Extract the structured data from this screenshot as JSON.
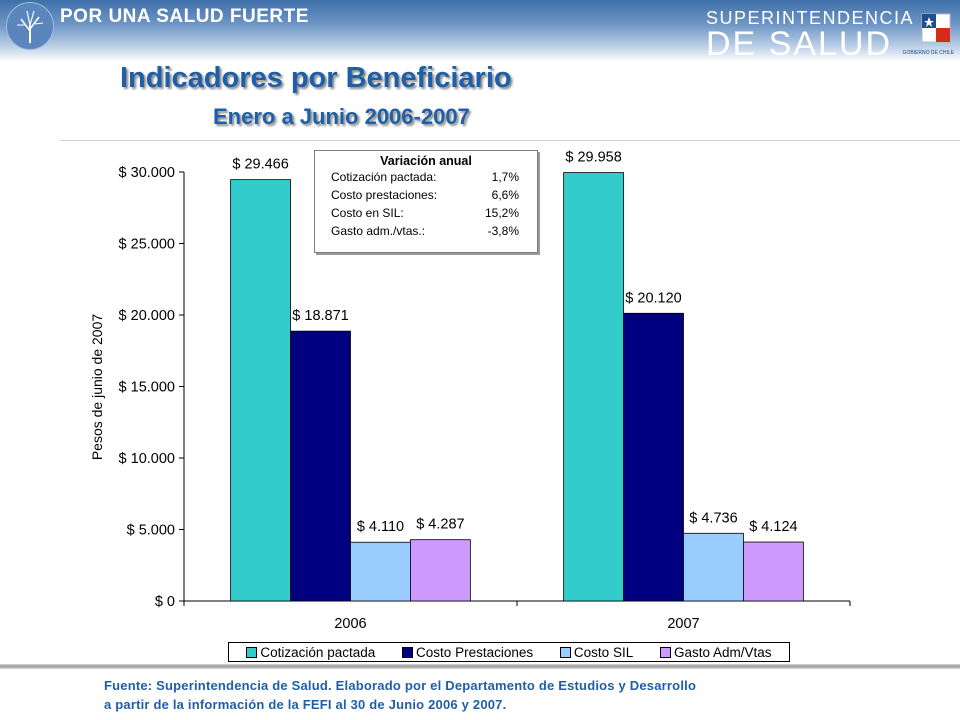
{
  "header": {
    "slogan": "POR UNA SALUD FUERTE",
    "brand_top": "SUPERINTENDENCIA",
    "brand_bottom": "DE SALUD",
    "gov_text": "GOBIERNO DE CHILE",
    "colors": {
      "band": "#3f6fa8",
      "title": "#1f5fa8"
    }
  },
  "title": "Indicadores por Beneficiario",
  "subtitle": "Enero a Junio 2006-2007",
  "chart_data": {
    "type": "bar",
    "ylabel": "Pesos de junio de 2007",
    "ylim": [
      0,
      30000
    ],
    "yticks": [
      0,
      5000,
      10000,
      15000,
      20000,
      25000,
      30000
    ],
    "ytick_labels": [
      "$ 0",
      "$ 5.000",
      "$ 10.000",
      "$ 15.000",
      "$ 20.000",
      "$ 25.000",
      "$ 30.000"
    ],
    "categories": [
      "2006",
      "2007"
    ],
    "legend_position": "bottom",
    "series": [
      {
        "name": "Cotización pactada",
        "color": "#33cccc",
        "values": [
          29466,
          29958
        ],
        "labels": [
          "$ 29.466",
          "$ 29.958"
        ]
      },
      {
        "name": "Costo Prestaciones",
        "color": "#000080",
        "values": [
          18871,
          20120
        ],
        "labels": [
          "$ 18.871",
          "$ 20.120"
        ]
      },
      {
        "name": "Costo SIL",
        "color": "#99ccff",
        "values": [
          4110,
          4736
        ],
        "labels": [
          "$ 4.110",
          "$ 4.736"
        ]
      },
      {
        "name": "Gasto Adm/Vtas",
        "color": "#cc99ff",
        "values": [
          4287,
          4124
        ],
        "labels": [
          "$ 4.287",
          "$ 4.124"
        ]
      }
    ],
    "annotation": {
      "title": "Variación anual",
      "rows": [
        {
          "label": "Cotización pactada:",
          "value": "1,7%"
        },
        {
          "label": "Costo prestaciones:",
          "value": "6,6%"
        },
        {
          "label": "Costo en SIL:",
          "value": "15,2%"
        },
        {
          "label": "Gasto adm./vtas.:",
          "value": "-3,8%"
        }
      ]
    }
  },
  "source": {
    "line1": "Fuente:  Superintendencia de Salud. Elaborado por el Departamento de Estudios y Desarrollo",
    "line2": "a partir de la información de la FEFI al 30 de Junio 2006 y 2007."
  }
}
